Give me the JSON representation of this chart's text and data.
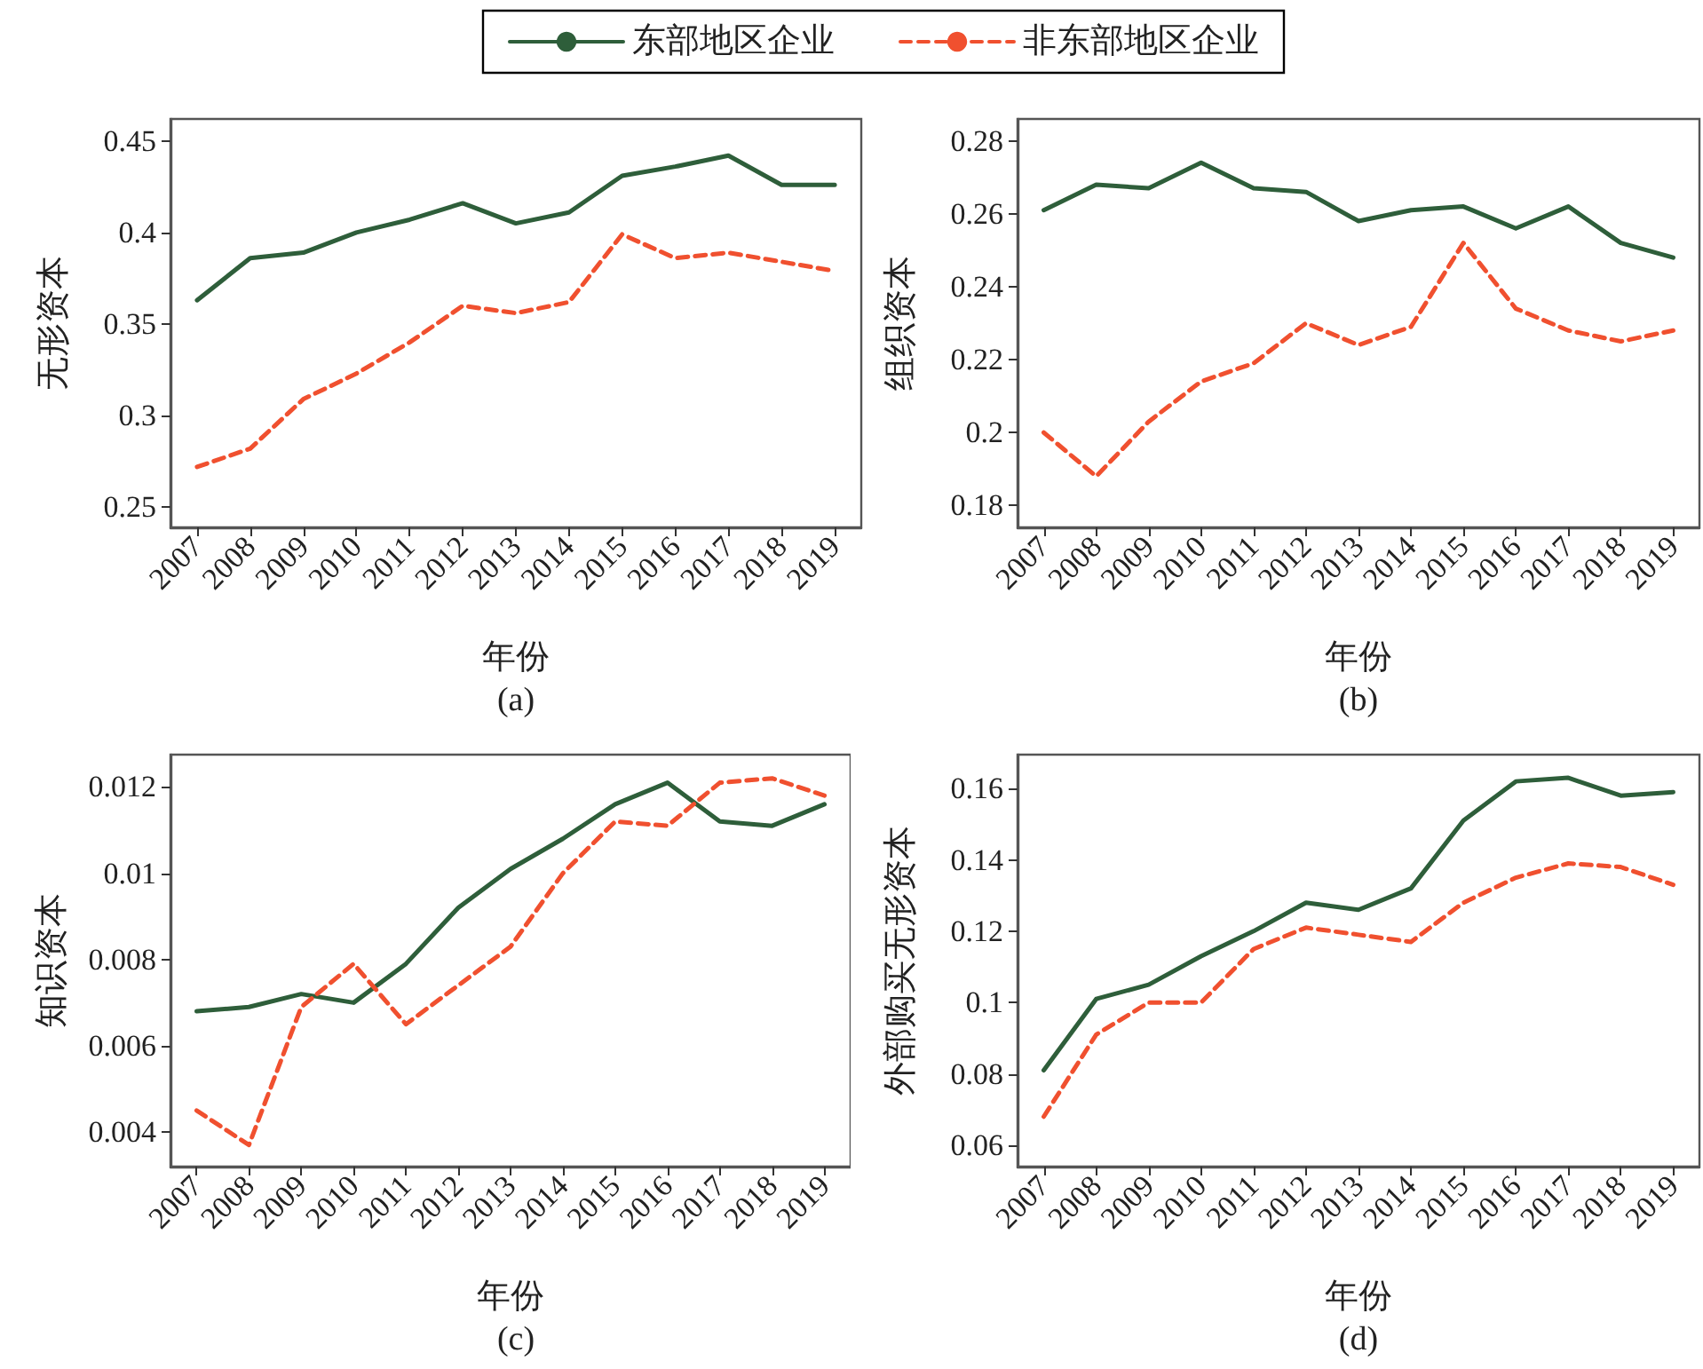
{
  "chart_data": [
    {
      "type": "line",
      "ylabel": "无形资本",
      "xlabel": "年份",
      "annotations": [
        "(a)"
      ],
      "categories": [
        "2007",
        "2008",
        "2009",
        "2010",
        "2011",
        "2012",
        "2013",
        "2014",
        "2015",
        "2016",
        "2017",
        "2018",
        "2019"
      ],
      "ylim": [
        0.239,
        0.462
      ],
      "yticks": [
        0.25,
        0.3,
        0.35,
        0.4,
        0.45
      ],
      "legend": "top",
      "grid": false,
      "series": [
        {
          "name": "东部地区企业",
          "color": "#2e5e3a",
          "line_style": "solid",
          "values": [
            0.363,
            0.386,
            0.389,
            0.4,
            0.407,
            0.416,
            0.405,
            0.411,
            0.431,
            0.436,
            0.442,
            0.426,
            0.426
          ]
        },
        {
          "name": "非东部地区企业",
          "color": "#f0502f",
          "line_style": "dashed",
          "values": [
            0.272,
            0.282,
            0.309,
            0.323,
            0.34,
            0.36,
            0.356,
            0.362,
            0.399,
            0.386,
            0.389,
            0.384,
            0.379
          ]
        }
      ]
    },
    {
      "type": "line",
      "ylabel": "组织资本",
      "xlabel": "年份",
      "annotations": [
        "(b)"
      ],
      "categories": [
        "2007",
        "2008",
        "2009",
        "2010",
        "2011",
        "2012",
        "2013",
        "2014",
        "2015",
        "2016",
        "2017",
        "2018",
        "2019"
      ],
      "ylim": [
        0.174,
        0.286
      ],
      "yticks": [
        0.18,
        0.2,
        0.22,
        0.24,
        0.26,
        0.28
      ],
      "grid": false,
      "series": [
        {
          "color": "#2e5e3a",
          "line_style": "solid",
          "values": [
            0.261,
            0.268,
            0.267,
            0.274,
            0.267,
            0.266,
            0.258,
            0.261,
            0.262,
            0.256,
            0.262,
            0.252,
            0.248
          ]
        },
        {
          "color": "#f0502f",
          "line_style": "dashed",
          "values": [
            0.2,
            0.188,
            0.203,
            0.214,
            0.219,
            0.23,
            0.224,
            0.229,
            0.252,
            0.234,
            0.228,
            0.225,
            0.228
          ]
        }
      ]
    },
    {
      "type": "line",
      "ylabel": "知识资本",
      "xlabel": "年份",
      "annotations": [
        "(c)"
      ],
      "categories": [
        "2007",
        "2008",
        "2009",
        "2010",
        "2011",
        "2012",
        "2013",
        "2014",
        "2015",
        "2016",
        "2017",
        "2018",
        "2019"
      ],
      "ylim": [
        0.0032,
        0.01275
      ],
      "yticks": [
        0.004,
        0.006,
        0.008,
        0.01,
        0.012
      ],
      "grid": false,
      "series": [
        {
          "color": "#2e5e3a",
          "line_style": "solid",
          "values": [
            0.0068,
            0.0069,
            0.0072,
            0.007,
            0.0079,
            0.0092,
            0.0101,
            0.0108,
            0.0116,
            0.0121,
            0.0112,
            0.0111,
            0.0116
          ]
        },
        {
          "color": "#f0502f",
          "line_style": "dashed",
          "values": [
            0.0045,
            0.0037,
            0.0069,
            0.0079,
            0.0065,
            0.0074,
            0.0083,
            0.01,
            0.0112,
            0.0111,
            0.0121,
            0.0122,
            0.0118
          ]
        }
      ]
    },
    {
      "type": "line",
      "ylabel": "外部购买无形资本",
      "xlabel": "年份",
      "annotations": [
        "(d)"
      ],
      "categories": [
        "2007",
        "2008",
        "2009",
        "2010",
        "2011",
        "2012",
        "2013",
        "2014",
        "2015",
        "2016",
        "2017",
        "2018",
        "2019"
      ],
      "ylim": [
        0.054,
        0.1695
      ],
      "yticks": [
        0.06,
        0.08,
        0.1,
        0.12,
        0.14,
        0.16
      ],
      "grid": false,
      "series": [
        {
          "color": "#2e5e3a",
          "line_style": "solid",
          "values": [
            0.081,
            0.101,
            0.105,
            0.113,
            0.12,
            0.128,
            0.126,
            0.132,
            0.151,
            0.162,
            0.163,
            0.158,
            0.159
          ]
        },
        {
          "color": "#f0502f",
          "line_style": "dashed",
          "values": [
            0.068,
            0.091,
            0.1,
            0.1,
            0.115,
            0.121,
            0.119,
            0.117,
            0.128,
            0.135,
            0.139,
            0.138,
            0.133
          ]
        }
      ]
    }
  ]
}
